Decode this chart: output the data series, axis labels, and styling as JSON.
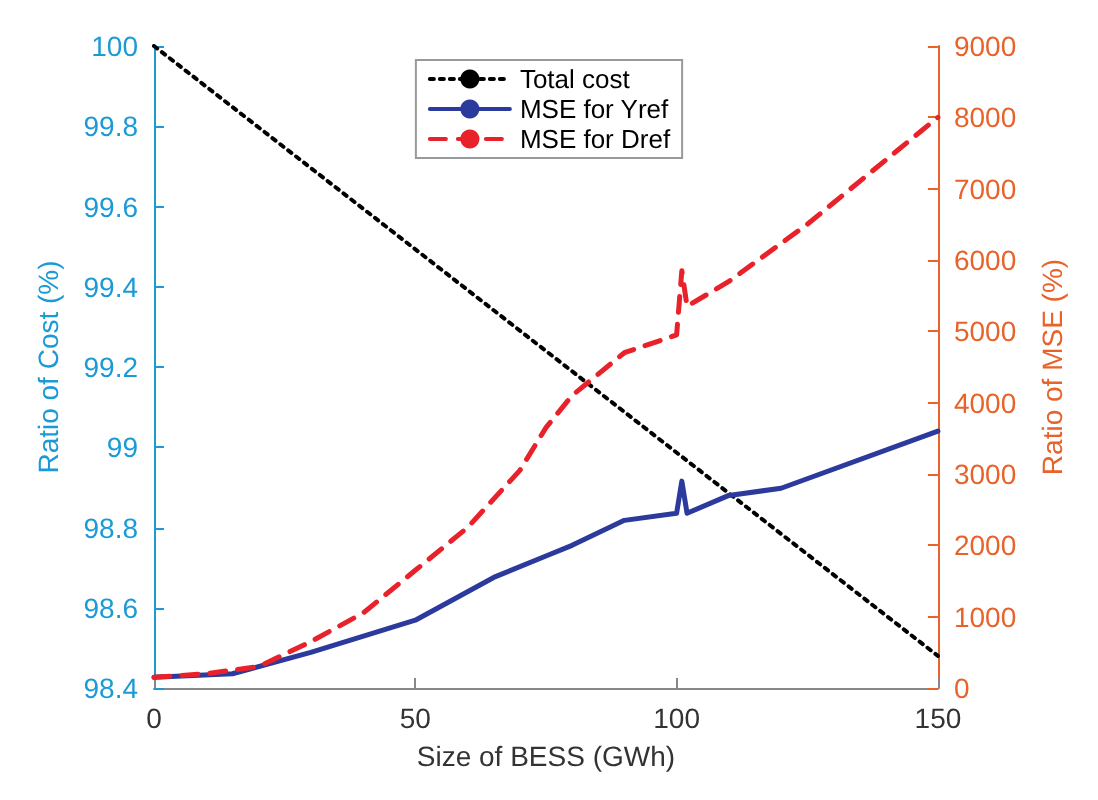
{
  "chart_data": {
    "type": "line",
    "xlabel": "Size of BESS (GWh)",
    "ylabel": "Ratio of Cost (%)",
    "y2label": "Ratio of MSE (%)",
    "xlim": [
      0,
      150
    ],
    "xticks": [
      0,
      50,
      100,
      150
    ],
    "ylim": [
      98.4,
      100
    ],
    "yticks": [
      98.4,
      98.6,
      98.8,
      99,
      99.2,
      99.4,
      99.6,
      99.8,
      100
    ],
    "y2lim": [
      0,
      9000
    ],
    "y2ticks": [
      0,
      1000,
      2000,
      3000,
      4000,
      5000,
      6000,
      7000,
      8000,
      9000
    ],
    "grid": false,
    "legend": "top",
    "marker": "none",
    "series": [
      {
        "name": "Total cost",
        "color": "#000000",
        "line_style": "dotted",
        "x": [
          0,
          150
        ],
        "values": [
          100,
          98.48
        ]
      },
      {
        "name": "MSE for Yref",
        "color": "#2b3a9c",
        "line_style": "solid",
        "axis": "y2",
        "x": [
          0,
          15,
          30,
          50,
          65,
          75,
          80,
          90,
          100,
          101,
          102,
          110,
          120,
          150
        ],
        "values": [
          150,
          200,
          500,
          950,
          1550,
          1850,
          2000,
          2350,
          2450,
          2900,
          2450,
          2700,
          2800,
          3600
        ]
      },
      {
        "name": "MSE for Dref",
        "color": "#e8212a",
        "line_style": "dashed",
        "axis": "y2",
        "x": [
          0,
          10,
          20,
          30,
          40,
          50,
          60,
          70,
          75,
          80,
          90,
          100,
          101,
          102,
          110,
          125,
          150
        ],
        "values": [
          150,
          200,
          300,
          650,
          1050,
          1650,
          2250,
          3050,
          3650,
          4100,
          4700,
          4950,
          5850,
          5350,
          5700,
          6500,
          8000
        ]
      }
    ]
  }
}
